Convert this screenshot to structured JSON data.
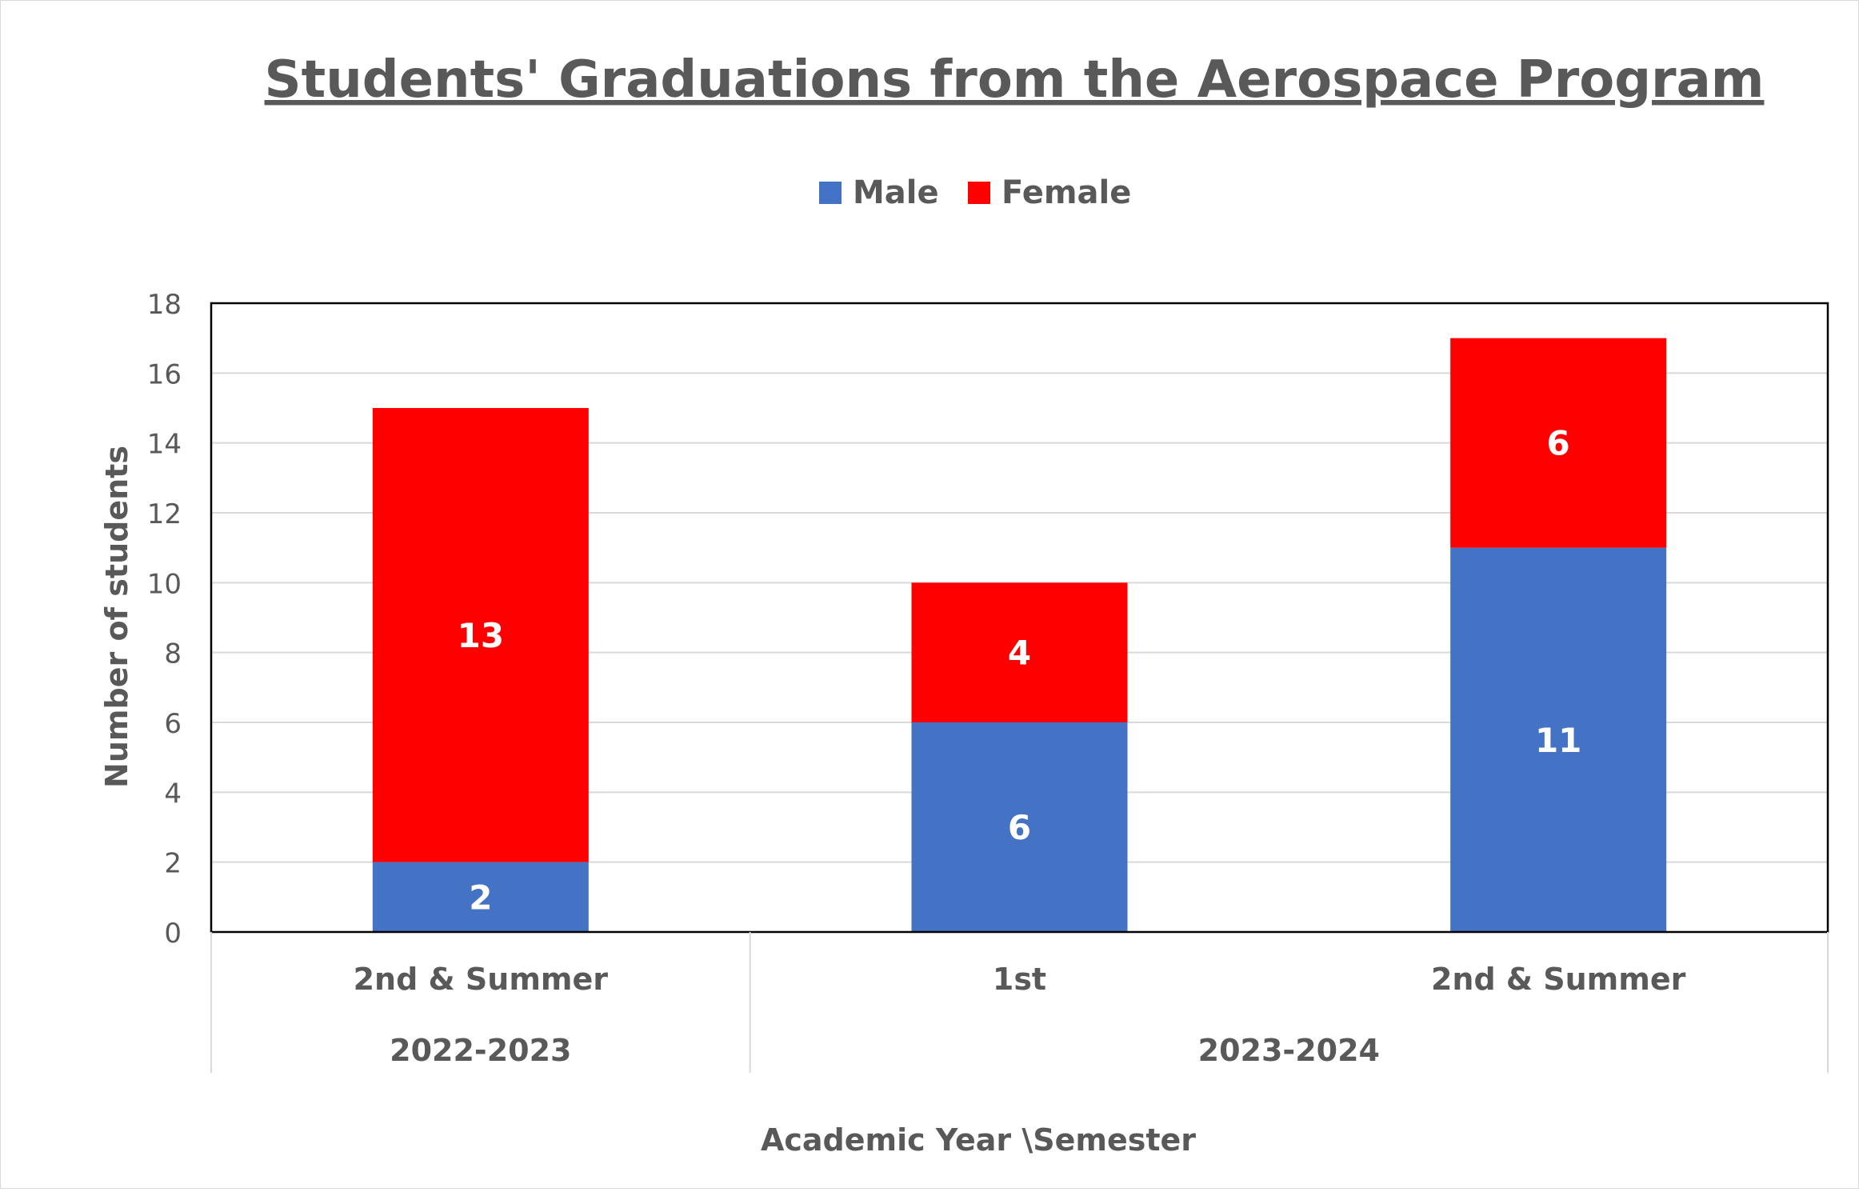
{
  "chart_data": {
    "type": "bar",
    "stacked": true,
    "title": "Students' Graduations from the Aerospace Program",
    "xlabel": "Academic Year \\Semester",
    "ylabel": "Number of students",
    "ylim": [
      0,
      18
    ],
    "yticks": [
      0,
      2,
      4,
      6,
      8,
      10,
      12,
      14,
      16,
      18
    ],
    "grid": true,
    "legend_position": "top",
    "categories": [
      "2nd & Summer",
      "1st",
      "2nd & Summer"
    ],
    "category_groups": [
      {
        "label": "2022-2023",
        "span": 1
      },
      {
        "label": "2023-2024",
        "span": 2
      }
    ],
    "series": [
      {
        "name": "Male",
        "color": "#4472C4",
        "values": [
          2,
          6,
          11
        ]
      },
      {
        "name": "Female",
        "color": "#FF0000",
        "values": [
          13,
          4,
          6
        ]
      }
    ],
    "colors": {
      "text": "#595959",
      "grid": "#d9d9d9",
      "axis": "#000000",
      "data_label": "#ffffff"
    }
  }
}
